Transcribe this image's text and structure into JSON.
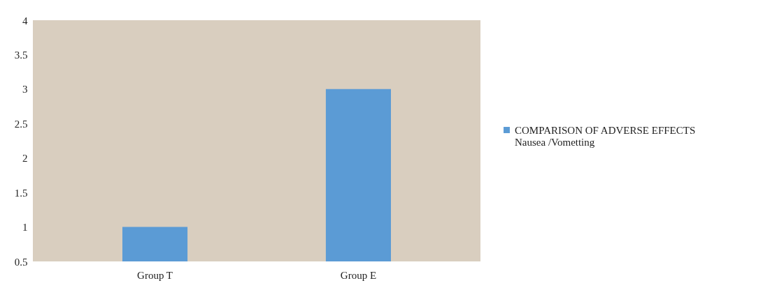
{
  "chart_data": {
    "type": "bar",
    "categories": [
      "Group T",
      "Group E"
    ],
    "series": [
      {
        "name": "COMPARISON OF ADVERSE EFFECTS  Nausea /Vometting",
        "color": "#5b9bd5",
        "values": [
          1,
          3
        ]
      }
    ],
    "ylim": [
      0.5,
      4
    ],
    "yticks": [
      0.5,
      1,
      1.5,
      2,
      2.5,
      3,
      3.5,
      4
    ],
    "grid": false,
    "legend": "right"
  }
}
